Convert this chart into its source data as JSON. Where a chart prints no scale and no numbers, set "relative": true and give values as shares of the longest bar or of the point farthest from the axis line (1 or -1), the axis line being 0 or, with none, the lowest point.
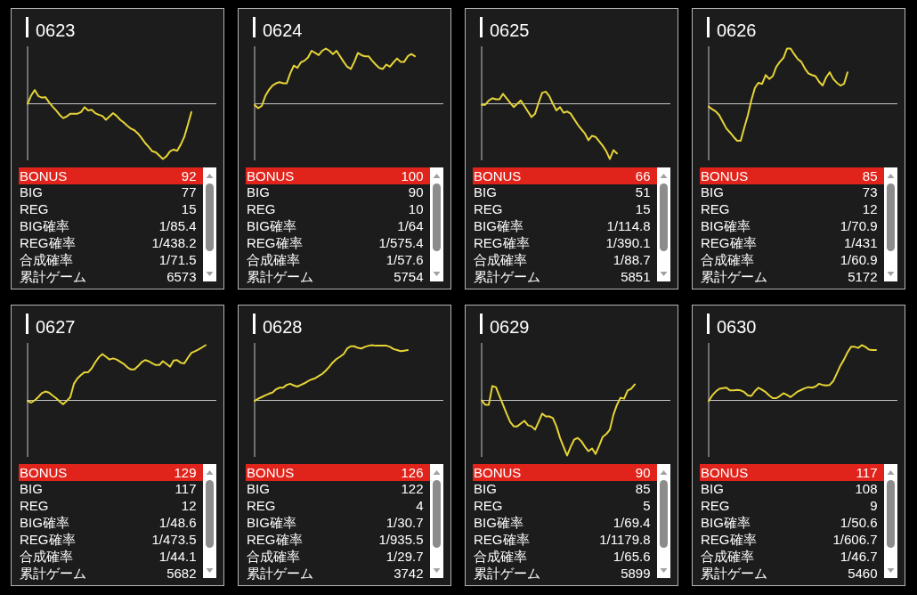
{
  "chart_data": [
    {
      "type": "line",
      "title": "0623",
      "relative": true,
      "color": "#e6d437",
      "categories": [
        null,
        null,
        null,
        null,
        null,
        null,
        null,
        null,
        null,
        null,
        null,
        null,
        null,
        null,
        null,
        null,
        null,
        null,
        null,
        null,
        null,
        null,
        null,
        null,
        null,
        null,
        null,
        null,
        null,
        null,
        null,
        null,
        null,
        null,
        null,
        null,
        null,
        null,
        null,
        null,
        null,
        null,
        null,
        null,
        null,
        null,
        null,
        null,
        null,
        null,
        null,
        null,
        null,
        null
      ],
      "values": [
        0,
        0.15,
        0.25,
        0.14,
        0.11,
        0.12,
        0.03,
        -0.05,
        -0.12,
        -0.2,
        -0.26,
        -0.23,
        -0.18,
        -0.18,
        -0.18,
        -0.15,
        -0.06,
        -0.12,
        -0.11,
        -0.17,
        -0.2,
        -0.22,
        -0.29,
        -0.23,
        -0.17,
        -0.22,
        -0.29,
        -0.34,
        -0.4,
        -0.45,
        -0.48,
        -0.54,
        -0.62,
        -0.71,
        -0.78,
        -0.86,
        -0.88,
        -0.94,
        -1,
        -0.95,
        -0.86,
        -0.83,
        -0.85,
        -0.74,
        -0.6,
        -0.38,
        -0.15,
        null,
        null,
        null,
        null,
        null,
        null,
        null
      ]
    },
    {
      "type": "other",
      "annotations": [
        "BONUS",
        "92",
        "BIG",
        "77",
        "REG",
        "15",
        "BIG確率",
        "1/85.4",
        "REG確率",
        "1/438.2",
        "合成確率",
        "1/71.5",
        "累計ゲーム",
        "6573"
      ]
    },
    {
      "type": "line",
      "title": "0624",
      "relative": true,
      "color": "#e6d437",
      "categories": [
        null,
        null,
        null,
        null,
        null,
        null,
        null,
        null,
        null,
        null,
        null,
        null,
        null,
        null,
        null,
        null,
        null,
        null,
        null,
        null,
        null,
        null,
        null,
        null,
        null,
        null,
        null,
        null,
        null,
        null,
        null,
        null,
        null,
        null,
        null,
        null,
        null,
        null,
        null,
        null,
        null,
        null,
        null,
        null,
        null,
        null,
        null,
        null,
        null,
        null,
        null,
        null,
        null,
        null
      ],
      "values": [
        -0.02,
        -0.08,
        -0.04,
        0.14,
        0.25,
        0.33,
        0.37,
        0.39,
        0.37,
        0.37,
        0.55,
        0.69,
        0.65,
        0.75,
        0.78,
        0.84,
        0.96,
        0.92,
        0.88,
        0.96,
        1,
        0.96,
        0.9,
        0.96,
        0.86,
        0.76,
        0.67,
        0.63,
        0.76,
        0.92,
        0.88,
        0.86,
        0.86,
        0.78,
        0.71,
        0.65,
        0.63,
        0.71,
        0.67,
        0.75,
        0.82,
        0.76,
        0.76,
        0.86,
        0.9,
        0.86,
        null,
        null,
        null,
        null,
        null,
        null,
        null,
        null
      ]
    },
    {
      "type": "other",
      "annotations": [
        "BONUS",
        "100",
        "BIG",
        "90",
        "REG",
        "10",
        "BIG確率",
        "1/64",
        "REG確率",
        "1/575.4",
        "合成確率",
        "1/57.6",
        "累計ゲーム",
        "5754"
      ]
    },
    {
      "type": "line",
      "title": "0625",
      "relative": true,
      "color": "#e6d437",
      "categories": [
        null,
        null,
        null,
        null,
        null,
        null,
        null,
        null,
        null,
        null,
        null,
        null,
        null,
        null,
        null,
        null,
        null,
        null,
        null,
        null,
        null,
        null,
        null,
        null,
        null,
        null,
        null,
        null,
        null,
        null,
        null,
        null,
        null,
        null,
        null,
        null,
        null,
        null,
        null,
        null,
        null,
        null,
        null,
        null,
        null,
        null,
        null,
        null,
        null,
        null,
        null,
        null,
        null,
        null
      ],
      "values": [
        -0.02,
        -0.02,
        0.06,
        0.1,
        0.08,
        0.08,
        0.18,
        0.1,
        0.02,
        -0.06,
        0,
        0.06,
        -0.04,
        -0.14,
        -0.24,
        -0.18,
        0.02,
        0.2,
        0.22,
        0.14,
        0,
        -0.12,
        -0.06,
        -0.16,
        -0.14,
        -0.18,
        -0.28,
        -0.38,
        -0.46,
        -0.54,
        -0.66,
        -0.58,
        -0.6,
        -0.68,
        -0.76,
        -0.86,
        -1,
        -0.84,
        -0.9,
        null,
        null,
        null,
        null,
        null,
        null,
        null,
        null,
        null,
        null,
        null,
        null,
        null,
        null,
        null
      ]
    },
    {
      "type": "other",
      "annotations": [
        "BONUS",
        "66",
        "BIG",
        "51",
        "REG",
        "15",
        "BIG確率",
        "1/114.8",
        "REG確率",
        "1/390.1",
        "合成確率",
        "1/88.7",
        "累計ゲーム",
        "5851"
      ]
    },
    {
      "type": "line",
      "title": "0626",
      "relative": true,
      "color": "#e6d437",
      "categories": [
        null,
        null,
        null,
        null,
        null,
        null,
        null,
        null,
        null,
        null,
        null,
        null,
        null,
        null,
        null,
        null,
        null,
        null,
        null,
        null,
        null,
        null,
        null,
        null,
        null,
        null,
        null,
        null,
        null,
        null,
        null,
        null,
        null,
        null,
        null,
        null,
        null,
        null,
        null,
        null,
        null,
        null,
        null,
        null,
        null,
        null,
        null,
        null,
        null,
        null,
        null,
        null,
        null,
        null
      ],
      "values": [
        -0.05,
        -0.1,
        -0.14,
        -0.21,
        -0.33,
        -0.45,
        -0.52,
        -0.6,
        -0.67,
        -0.67,
        -0.43,
        -0.21,
        0.07,
        0.29,
        0.38,
        0.36,
        0.52,
        0.45,
        0.5,
        0.67,
        0.76,
        0.83,
        1,
        1,
        0.9,
        0.81,
        0.76,
        0.64,
        0.55,
        0.52,
        0.5,
        0.4,
        0.33,
        0.48,
        0.57,
        0.45,
        0.38,
        0.33,
        0.36,
        0.57,
        null,
        null,
        null,
        null,
        null,
        null,
        null,
        null,
        null,
        null,
        null,
        null,
        null,
        null
      ]
    },
    {
      "type": "other",
      "annotations": [
        "BONUS",
        "85",
        "BIG",
        "73",
        "REG",
        "12",
        "BIG確率",
        "1/70.9",
        "REG確率",
        "1/431",
        "合成確率",
        "1/60.9",
        "累計ゲーム",
        "5172"
      ]
    },
    {
      "type": "line",
      "title": "0627",
      "relative": true,
      "color": "#e6d437",
      "categories": [
        null,
        null,
        null,
        null,
        null,
        null,
        null,
        null,
        null,
        null,
        null,
        null,
        null,
        null,
        null,
        null,
        null,
        null,
        null,
        null,
        null,
        null,
        null,
        null,
        null,
        null,
        null,
        null,
        null,
        null,
        null,
        null,
        null,
        null,
        null,
        null,
        null,
        null,
        null,
        null,
        null,
        null,
        null,
        null,
        null,
        null,
        null,
        null,
        null,
        null,
        null,
        null,
        null,
        null
      ],
      "values": [
        -0.01,
        -0.04,
        0,
        0.06,
        0.13,
        0.16,
        0.14,
        0.09,
        0.04,
        -0.02,
        -0.07,
        -0.01,
        0.06,
        0.3,
        0.4,
        0.46,
        0.51,
        0.51,
        0.58,
        0.69,
        0.78,
        0.84,
        0.79,
        0.74,
        0.76,
        0.74,
        0.7,
        0.66,
        0.6,
        0.56,
        0.56,
        0.62,
        0.69,
        0.73,
        0.71,
        0.67,
        0.64,
        0.64,
        0.71,
        0.66,
        0.61,
        0.72,
        0.73,
        0.68,
        0.67,
        0.77,
        0.86,
        0.89,
        0.92,
        0.96,
        1,
        null,
        null,
        null
      ]
    },
    {
      "type": "other",
      "annotations": [
        "BONUS",
        "129",
        "BIG",
        "117",
        "REG",
        "12",
        "BIG確率",
        "1/48.6",
        "REG確率",
        "1/473.5",
        "合成確率",
        "1/44.1",
        "累計ゲーム",
        "5682"
      ]
    },
    {
      "type": "line",
      "title": "0628",
      "relative": true,
      "color": "#e6d437",
      "categories": [
        null,
        null,
        null,
        null,
        null,
        null,
        null,
        null,
        null,
        null,
        null,
        null,
        null,
        null,
        null,
        null,
        null,
        null,
        null,
        null,
        null,
        null,
        null,
        null,
        null,
        null,
        null,
        null,
        null,
        null,
        null,
        null,
        null,
        null,
        null,
        null,
        null,
        null,
        null,
        null,
        null,
        null,
        null,
        null,
        null,
        null,
        null,
        null,
        null,
        null,
        null,
        null,
        null,
        null
      ],
      "values": [
        -0.01,
        0.03,
        0.06,
        0.09,
        0.12,
        0.14,
        0.2,
        0.23,
        0.23,
        0.28,
        0.3,
        0.27,
        0.25,
        0.28,
        0.31,
        0.35,
        0.38,
        0.4,
        0.44,
        0.48,
        0.54,
        0.61,
        0.69,
        0.75,
        0.79,
        0.84,
        0.94,
        0.98,
        0.98,
        0.95,
        0.94,
        0.97,
        0.99,
        1,
        0.99,
        0.99,
        0.99,
        0.99,
        0.97,
        0.93,
        0.91,
        0.89,
        0.9,
        0.91,
        null,
        null,
        null,
        null,
        null,
        null,
        null,
        null,
        null,
        null
      ]
    },
    {
      "type": "other",
      "annotations": [
        "BONUS",
        "126",
        "BIG",
        "122",
        "REG",
        "4",
        "BIG確率",
        "1/30.7",
        "REG確率",
        "1/935.5",
        "合成確率",
        "1/29.7",
        "累計ゲーム",
        "3742"
      ]
    },
    {
      "type": "line",
      "title": "0629",
      "relative": true,
      "color": "#e6d437",
      "categories": [
        null,
        null,
        null,
        null,
        null,
        null,
        null,
        null,
        null,
        null,
        null,
        null,
        null,
        null,
        null,
        null,
        null,
        null,
        null,
        null,
        null,
        null,
        null,
        null,
        null,
        null,
        null,
        null,
        null,
        null,
        null,
        null,
        null,
        null,
        null,
        null,
        null,
        null,
        null,
        null,
        null,
        null,
        null,
        null,
        null,
        null,
        null,
        null,
        null,
        null,
        null,
        null,
        null,
        null
      ],
      "values": [
        0,
        -0.08,
        -0.08,
        0.26,
        0.24,
        0.08,
        -0.08,
        -0.24,
        -0.39,
        -0.47,
        -0.47,
        -0.42,
        -0.37,
        -0.45,
        -0.47,
        -0.53,
        -0.39,
        -0.24,
        -0.29,
        -0.29,
        -0.32,
        -0.47,
        -0.68,
        -0.84,
        -1,
        -0.84,
        -0.71,
        -0.68,
        -0.74,
        -0.84,
        -0.92,
        -0.87,
        -0.97,
        -0.82,
        -0.66,
        -0.61,
        -0.53,
        -0.26,
        -0.08,
        0.05,
        0.03,
        0.18,
        0.21,
        0.29,
        null,
        null,
        null,
        null,
        null,
        null,
        null,
        null,
        null,
        null
      ]
    },
    {
      "type": "other",
      "annotations": [
        "BONUS",
        "90",
        "BIG",
        "85",
        "REG",
        "5",
        "BIG確率",
        "1/69.4",
        "REG確率",
        "1/1179.8",
        "合成確率",
        "1/65.6",
        "累計ゲーム",
        "5899"
      ]
    },
    {
      "type": "line",
      "title": "0630",
      "relative": true,
      "color": "#e6d437",
      "categories": [
        null,
        null,
        null,
        null,
        null,
        null,
        null,
        null,
        null,
        null,
        null,
        null,
        null,
        null,
        null,
        null,
        null,
        null,
        null,
        null,
        null,
        null,
        null,
        null,
        null,
        null,
        null,
        null,
        null,
        null,
        null,
        null,
        null,
        null,
        null,
        null,
        null,
        null,
        null,
        null,
        null,
        null,
        null,
        null,
        null,
        null,
        null,
        null,
        null,
        null,
        null,
        null,
        null,
        null
      ],
      "values": [
        -0.01,
        0.09,
        0.16,
        0.21,
        0.22,
        0.23,
        0.18,
        0.18,
        0.19,
        0.18,
        0.15,
        0.09,
        0.08,
        0.17,
        0.23,
        0.19,
        0.15,
        0.09,
        0.04,
        0.04,
        0.08,
        0.13,
        0.1,
        0.06,
        0.11,
        0.16,
        0.19,
        0.22,
        0.24,
        0.23,
        0.25,
        0.3,
        0.28,
        0.27,
        0.28,
        0.35,
        0.49,
        0.63,
        0.74,
        0.87,
        0.97,
        0.97,
        0.95,
        1,
        0.97,
        0.92,
        0.91,
        0.91,
        null,
        null,
        null,
        null,
        null,
        null
      ]
    },
    {
      "type": "other",
      "annotations": [
        "BONUS",
        "117",
        "BIG",
        "108",
        "REG",
        "9",
        "BIG確率",
        "1/50.6",
        "REG確率",
        "1/606.7",
        "合成確率",
        "1/46.7",
        "累計ゲーム",
        "5460"
      ]
    }
  ]
}
